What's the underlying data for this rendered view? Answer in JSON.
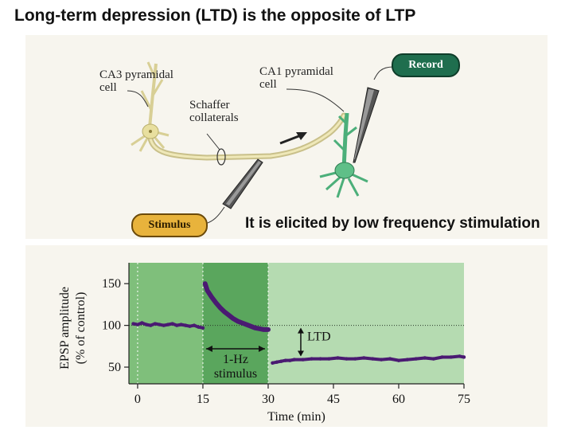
{
  "title": "Long-term depression (LTD) is the opposite of LTP",
  "diagram": {
    "ca3_label_line1": "CA3 pyramidal",
    "ca3_label_line2": "cell",
    "ca1_label_line1": "CA1 pyramidal",
    "ca1_label_line2": "cell",
    "schaffer_line1": "Schaffer",
    "schaffer_line2": "collaterals",
    "record_label": "Record",
    "stimulus_label": "Stimulus"
  },
  "caption": "It is elicited by low frequency stimulation",
  "chart_data": {
    "type": "scatter",
    "title": "",
    "xlabel": "Time (min)",
    "ylabel_line1": "EPSP amplitude",
    "ylabel_line2": "(% of control)",
    "xlim": [
      -2,
      75
    ],
    "ylim": [
      30,
      175
    ],
    "x_ticks": [
      0,
      15,
      30,
      45,
      60,
      75
    ],
    "y_ticks": [
      50,
      100,
      150
    ],
    "baseline_value": 100,
    "stimulus_window": [
      15,
      30
    ],
    "annotation_ltd": "LTD",
    "annotation_stim_line1": "1-Hz",
    "annotation_stim_line2": "stimulus",
    "colors": {
      "background_light": "#b5dbb1",
      "background_dark": "#7fbf7b",
      "stim_band": "#5aa65d",
      "data": "#4a1a72"
    },
    "series": [
      {
        "name": "EPSP",
        "points": [
          [
            -1,
            102
          ],
          [
            0,
            101
          ],
          [
            1,
            103
          ],
          [
            2,
            101
          ],
          [
            3,
            100
          ],
          [
            4,
            102
          ],
          [
            5,
            101
          ],
          [
            6,
            100
          ],
          [
            7,
            101
          ],
          [
            8,
            102
          ],
          [
            9,
            100
          ],
          [
            10,
            101
          ],
          [
            11,
            100
          ],
          [
            12,
            99
          ],
          [
            13,
            100
          ],
          [
            14,
            98
          ],
          [
            15,
            97
          ],
          [
            15.5,
            150
          ],
          [
            16,
            142
          ],
          [
            17,
            134
          ],
          [
            18,
            127
          ],
          [
            19,
            121
          ],
          [
            20,
            116
          ],
          [
            21,
            112
          ],
          [
            22,
            108
          ],
          [
            23,
            105
          ],
          [
            24,
            103
          ],
          [
            25,
            101
          ],
          [
            26,
            99
          ],
          [
            27,
            97
          ],
          [
            28,
            96
          ],
          [
            29,
            95
          ],
          [
            30,
            95
          ],
          [
            31,
            55
          ],
          [
            32,
            56
          ],
          [
            33,
            57
          ],
          [
            34,
            58
          ],
          [
            35,
            58
          ],
          [
            36,
            59
          ],
          [
            38,
            59
          ],
          [
            40,
            60
          ],
          [
            42,
            60
          ],
          [
            44,
            60
          ],
          [
            46,
            61
          ],
          [
            48,
            60
          ],
          [
            50,
            60
          ],
          [
            52,
            61
          ],
          [
            54,
            60
          ],
          [
            56,
            59
          ],
          [
            58,
            60
          ],
          [
            60,
            58
          ],
          [
            62,
            59
          ],
          [
            64,
            60
          ],
          [
            66,
            61
          ],
          [
            68,
            60
          ],
          [
            70,
            62
          ],
          [
            72,
            62
          ],
          [
            74,
            63
          ],
          [
            75,
            62
          ]
        ]
      }
    ]
  }
}
